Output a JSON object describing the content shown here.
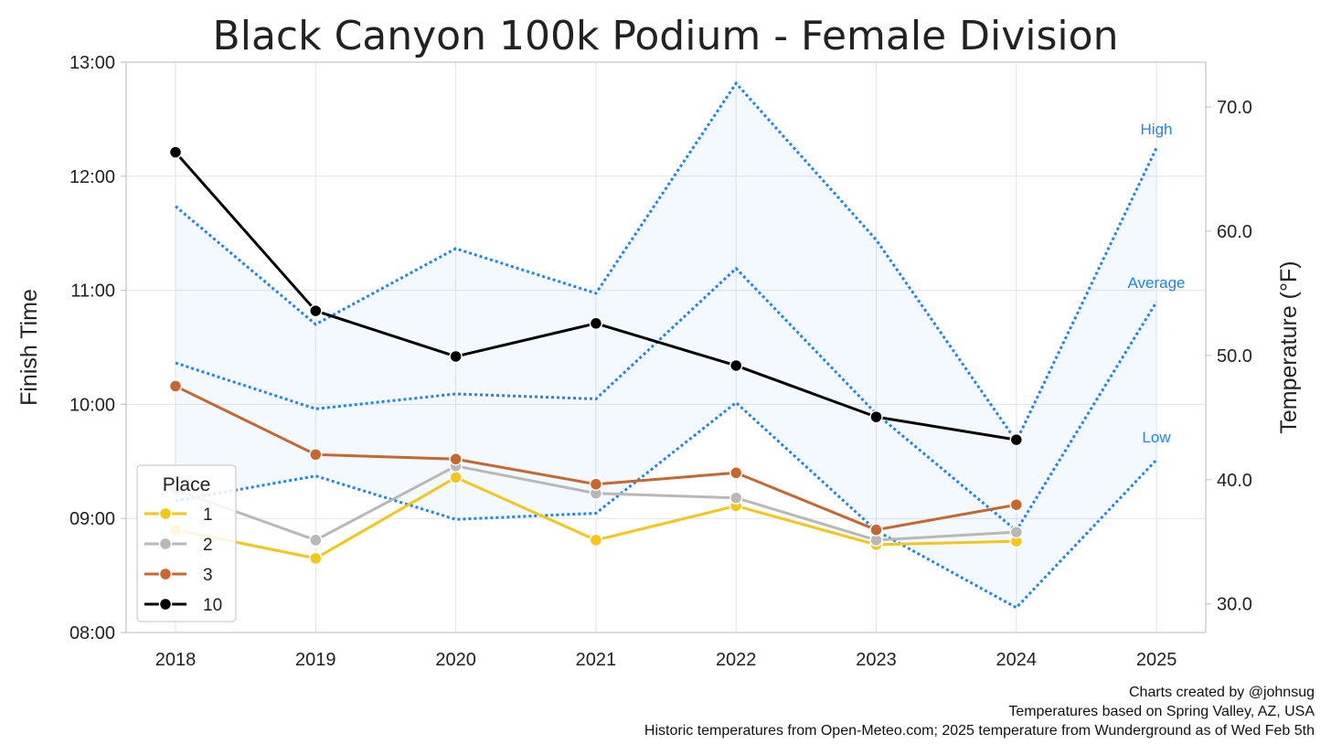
{
  "chart_data": {
    "type": "line",
    "title": "Black Canyon 100k Podium - Female Division",
    "xlabel": "",
    "ylabel": "Finish Time",
    "y2label": "Temperature (°F)",
    "categories": [
      "2018",
      "2019",
      "2020",
      "2021",
      "2022",
      "2023",
      "2024",
      "2025"
    ],
    "y_ticks": [
      "08:00",
      "09:00",
      "10:00",
      "11:00",
      "12:00",
      "13:00"
    ],
    "ylim_hours": [
      8,
      13
    ],
    "y2_ticks": [
      "30.0",
      "40.0",
      "50.0",
      "60.0",
      "70.0"
    ],
    "y2lim": [
      27.7,
      73.6
    ],
    "series": [
      {
        "name": "1",
        "color": "#f5c518",
        "values": [
          8.9,
          8.65,
          9.36,
          8.81,
          9.11,
          8.77,
          8.8,
          null
        ]
      },
      {
        "name": "2",
        "color": "#b8b8b8",
        "values": [
          9.25,
          8.81,
          9.46,
          9.22,
          9.18,
          8.81,
          8.88,
          null
        ]
      },
      {
        "name": "3",
        "color": "#c8662e",
        "values": [
          10.16,
          9.56,
          9.52,
          9.3,
          9.4,
          8.9,
          9.12,
          null
        ]
      },
      {
        "name": "10",
        "color": "#000000",
        "values": [
          12.21,
          10.82,
          10.42,
          10.71,
          10.34,
          9.89,
          9.69,
          null
        ]
      }
    ],
    "temperature": {
      "color": "#1a85ff",
      "high": [
        62.0,
        52.5,
        58.6,
        55.0,
        71.9,
        59.3,
        43.1,
        66.7
      ],
      "average": [
        49.4,
        45.7,
        46.9,
        46.5,
        57.0,
        45.3,
        35.9,
        54.3
      ],
      "low": [
        38.3,
        40.3,
        36.8,
        37.3,
        46.2,
        35.9,
        29.7,
        41.6
      ],
      "labels": {
        "high": "High",
        "average": "Average",
        "low": "Low"
      }
    },
    "legend": {
      "title": "Place",
      "position": "lower-left"
    }
  },
  "credits": {
    "line1": "Charts created by @johnsug",
    "line2": "Temperatures based on Spring Valley, AZ, USA",
    "line3": "Historic temperatures from Open-Meteo.com; 2025 temperature from Wunderground as of Wed Feb 5th"
  }
}
